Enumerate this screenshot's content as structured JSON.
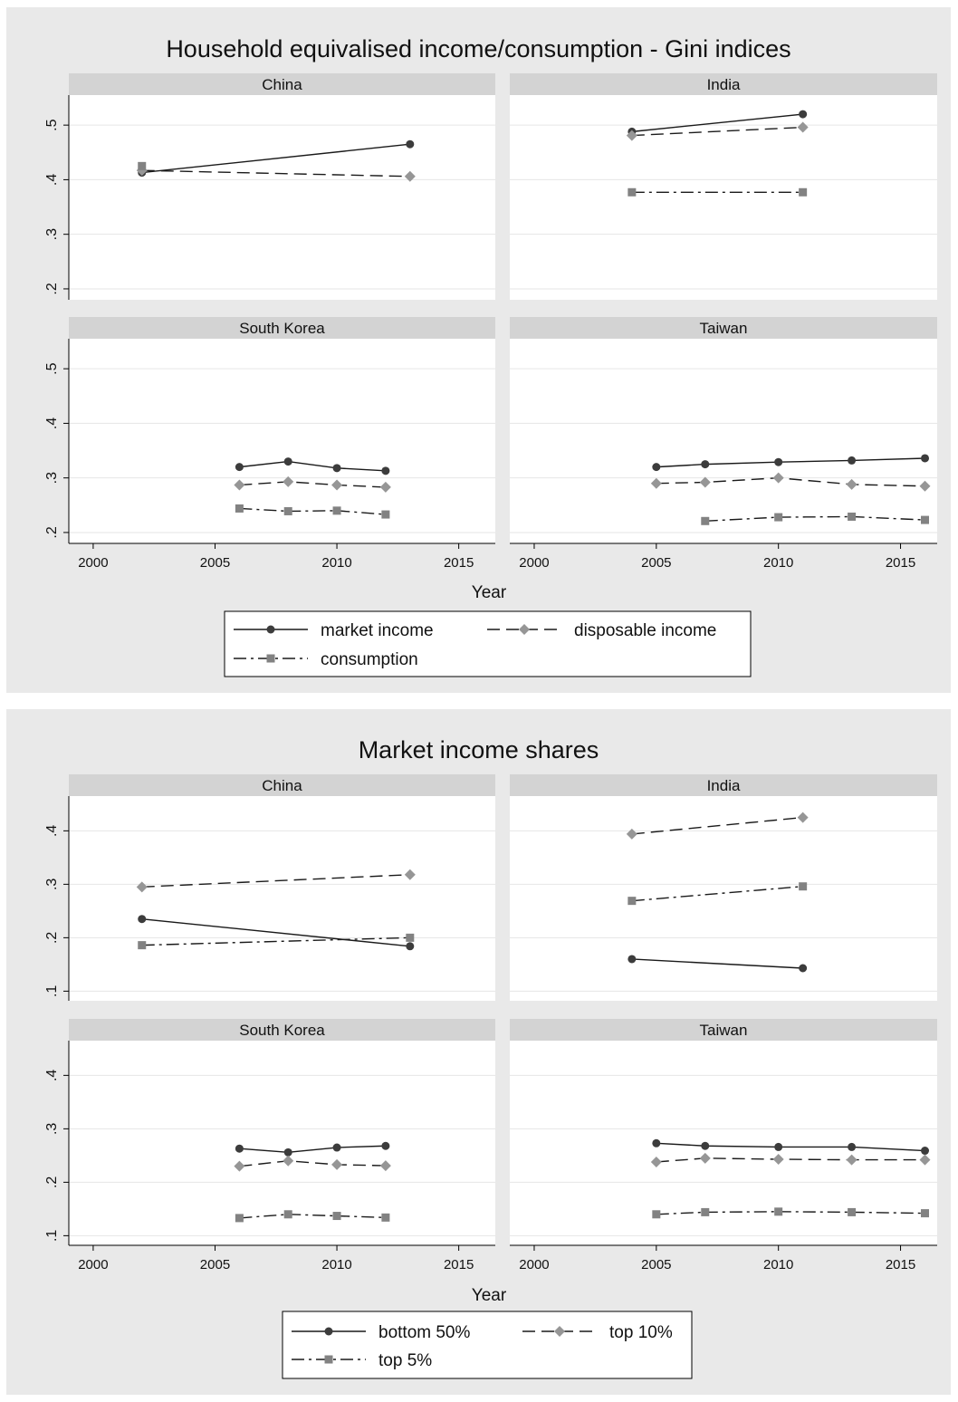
{
  "chart_data": [
    {
      "type": "line",
      "title": "Household equivalised income/consumption - Gini indices",
      "xlabel": "Year",
      "ylabel": "",
      "xlim": [
        1999,
        2016.5
      ],
      "ylim": [
        0.18,
        0.555
      ],
      "x_ticks": [
        2000,
        2005,
        2010,
        2015
      ],
      "x_tick_labels": [
        "2000",
        "2005",
        "2010",
        "2015"
      ],
      "y_ticks": [
        0.2,
        0.3,
        0.4,
        0.5
      ],
      "y_tick_labels": [
        ".2",
        ".3",
        ".4",
        ".5"
      ],
      "grid": true,
      "legend_position": "bottom",
      "series_styles": [
        {
          "name": "market income",
          "dash": "",
          "marker": "circle",
          "line_color": "#1a1a1a",
          "marker_color": "#3c3c3c"
        },
        {
          "name": "disposable income",
          "dash": "14,7",
          "marker": "diamond",
          "line_color": "#1a1a1a",
          "marker_color": "#969696"
        },
        {
          "name": "consumption",
          "dash": "14,5,3,5",
          "marker": "square",
          "line_color": "#1a1a1a",
          "marker_color": "#828282"
        }
      ],
      "panels": [
        {
          "name": "China",
          "series": [
            {
              "name": "market income",
              "x": [
                2002,
                2013
              ],
              "y": [
                0.413,
                0.465
              ]
            },
            {
              "name": "disposable income",
              "x": [
                2002,
                2013
              ],
              "y": [
                0.417,
                0.406
              ]
            },
            {
              "name": "consumption",
              "x": [
                2002
              ],
              "y": [
                0.425
              ]
            }
          ]
        },
        {
          "name": "India",
          "series": [
            {
              "name": "market income",
              "x": [
                2004,
                2011
              ],
              "y": [
                0.488,
                0.52
              ]
            },
            {
              "name": "disposable income",
              "x": [
                2004,
                2011
              ],
              "y": [
                0.481,
                0.496
              ]
            },
            {
              "name": "consumption",
              "x": [
                2004,
                2011
              ],
              "y": [
                0.377,
                0.377
              ]
            }
          ]
        },
        {
          "name": "South Korea",
          "series": [
            {
              "name": "market income",
              "x": [
                2006,
                2008,
                2010,
                2012
              ],
              "y": [
                0.32,
                0.33,
                0.318,
                0.313
              ]
            },
            {
              "name": "disposable income",
              "x": [
                2006,
                2008,
                2010,
                2012
              ],
              "y": [
                0.287,
                0.293,
                0.287,
                0.283
              ]
            },
            {
              "name": "consumption",
              "x": [
                2006,
                2008,
                2010,
                2012
              ],
              "y": [
                0.244,
                0.239,
                0.24,
                0.233
              ]
            }
          ]
        },
        {
          "name": "Taiwan",
          "series": [
            {
              "name": "market income",
              "x": [
                2005,
                2007,
                2010,
                2013,
                2016
              ],
              "y": [
                0.32,
                0.325,
                0.329,
                0.332,
                0.336
              ]
            },
            {
              "name": "disposable income",
              "x": [
                2005,
                2007,
                2010,
                2013,
                2016
              ],
              "y": [
                0.29,
                0.292,
                0.3,
                0.288,
                0.285
              ]
            },
            {
              "name": "consumption",
              "x": [
                2007,
                2010,
                2013,
                2016
              ],
              "y": [
                0.221,
                0.228,
                0.229,
                0.223
              ]
            }
          ]
        }
      ]
    },
    {
      "type": "line",
      "title": "Market income shares",
      "xlabel": "Year",
      "ylabel": "",
      "xlim": [
        1999,
        2016.5
      ],
      "ylim": [
        0.082,
        0.465
      ],
      "x_ticks": [
        2000,
        2005,
        2010,
        2015
      ],
      "x_tick_labels": [
        "2000",
        "2005",
        "2010",
        "2015"
      ],
      "y_ticks": [
        0.1,
        0.2,
        0.3,
        0.4
      ],
      "y_tick_labels": [
        ".1",
        ".2",
        ".3",
        ".4"
      ],
      "grid": true,
      "legend_position": "bottom",
      "series_styles": [
        {
          "name": "bottom 50%",
          "dash": "",
          "marker": "circle",
          "line_color": "#1a1a1a",
          "marker_color": "#3c3c3c"
        },
        {
          "name": "top 10%",
          "dash": "14,7",
          "marker": "diamond",
          "line_color": "#1a1a1a",
          "marker_color": "#969696"
        },
        {
          "name": "top 5%",
          "dash": "14,5,3,5",
          "marker": "square",
          "line_color": "#1a1a1a",
          "marker_color": "#828282"
        }
      ],
      "panels": [
        {
          "name": "China",
          "series": [
            {
              "name": "bottom 50%",
              "x": [
                2002,
                2013
              ],
              "y": [
                0.235,
                0.184
              ]
            },
            {
              "name": "top 10%",
              "x": [
                2002,
                2013
              ],
              "y": [
                0.295,
                0.318
              ]
            },
            {
              "name": "top 5%",
              "x": [
                2002,
                2013
              ],
              "y": [
                0.186,
                0.2
              ]
            }
          ]
        },
        {
          "name": "India",
          "series": [
            {
              "name": "bottom 50%",
              "x": [
                2004,
                2011
              ],
              "y": [
                0.16,
                0.143
              ]
            },
            {
              "name": "top 10%",
              "x": [
                2004,
                2011
              ],
              "y": [
                0.394,
                0.425
              ]
            },
            {
              "name": "top 5%",
              "x": [
                2004,
                2011
              ],
              "y": [
                0.269,
                0.296
              ]
            }
          ]
        },
        {
          "name": "South Korea",
          "series": [
            {
              "name": "bottom 50%",
              "x": [
                2006,
                2008,
                2010,
                2012
              ],
              "y": [
                0.263,
                0.256,
                0.265,
                0.268
              ]
            },
            {
              "name": "top 10%",
              "x": [
                2006,
                2008,
                2010,
                2012
              ],
              "y": [
                0.23,
                0.24,
                0.233,
                0.231
              ]
            },
            {
              "name": "top 5%",
              "x": [
                2006,
                2008,
                2010,
                2012
              ],
              "y": [
                0.133,
                0.14,
                0.137,
                0.134
              ]
            }
          ]
        },
        {
          "name": "Taiwan",
          "series": [
            {
              "name": "bottom 50%",
              "x": [
                2005,
                2007,
                2010,
                2013,
                2016
              ],
              "y": [
                0.273,
                0.268,
                0.266,
                0.266,
                0.259
              ]
            },
            {
              "name": "top 10%",
              "x": [
                2005,
                2007,
                2010,
                2013,
                2016
              ],
              "y": [
                0.238,
                0.245,
                0.243,
                0.242,
                0.242
              ]
            },
            {
              "name": "top 5%",
              "x": [
                2005,
                2007,
                2010,
                2013,
                2016
              ],
              "y": [
                0.14,
                0.144,
                0.145,
                0.144,
                0.142
              ]
            }
          ]
        }
      ]
    }
  ],
  "colors": {
    "background": "#e9e9e9",
    "plot_area": "#ffffff",
    "panel_header": "#d3d3d3",
    "gridline": "#e6e6e6"
  }
}
